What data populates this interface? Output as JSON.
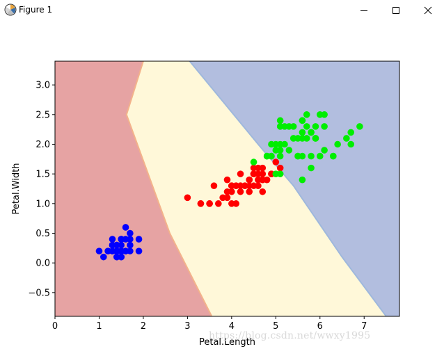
{
  "window": {
    "title": "Figure 1",
    "icon": "matplotlib-figure-icon",
    "buttons": [
      "minimize-icon",
      "maximize-icon",
      "close-icon"
    ]
  },
  "chart_data": {
    "type": "scatter",
    "title": "",
    "xlabel": "Petal.Length",
    "ylabel": "Petal.Width",
    "xlim": [
      0,
      7.8
    ],
    "ylim": [
      -0.9,
      3.4
    ],
    "xticks": [
      0,
      1,
      2,
      3,
      4,
      5,
      6,
      7
    ],
    "yticks": [
      -0.5,
      0.0,
      0.5,
      1.0,
      1.5,
      2.0,
      2.5,
      3.0
    ],
    "xtick_labels": [
      "0",
      "1",
      "2",
      "3",
      "4",
      "5",
      "6",
      "7"
    ],
    "ytick_labels": [
      "−0.5",
      "0.0",
      "0.5",
      "1.0",
      "1.5",
      "2.0",
      "2.5",
      "3.0"
    ],
    "grid": false,
    "decision_regions": [
      {
        "color": "#e6a3a3",
        "left_boundary": null,
        "right_boundary": [
          [
            2.0,
            3.4
          ],
          [
            1.62,
            2.5
          ],
          [
            2.6,
            0.5
          ],
          [
            3.55,
            -0.9
          ]
        ]
      },
      {
        "color": "#fff8d9",
        "left_boundary": "previous",
        "right_boundary": [
          [
            3.05,
            3.4
          ],
          [
            4.6,
            2.0
          ],
          [
            5.4,
            1.3
          ],
          [
            6.5,
            0.1
          ],
          [
            7.5,
            -0.9
          ]
        ]
      },
      {
        "color": "#b2bedf",
        "left_boundary": "previous",
        "right_boundary": null
      }
    ],
    "series": [
      {
        "color": "#0000ff",
        "points": [
          [
            1.4,
            0.2
          ],
          [
            1.4,
            0.2
          ],
          [
            1.3,
            0.2
          ],
          [
            1.5,
            0.2
          ],
          [
            1.4,
            0.2
          ],
          [
            1.7,
            0.4
          ],
          [
            1.4,
            0.3
          ],
          [
            1.5,
            0.2
          ],
          [
            1.4,
            0.2
          ],
          [
            1.5,
            0.1
          ],
          [
            1.5,
            0.2
          ],
          [
            1.6,
            0.2
          ],
          [
            1.4,
            0.1
          ],
          [
            1.1,
            0.1
          ],
          [
            1.2,
            0.2
          ],
          [
            1.5,
            0.4
          ],
          [
            1.3,
            0.4
          ],
          [
            1.4,
            0.3
          ],
          [
            1.7,
            0.3
          ],
          [
            1.5,
            0.3
          ],
          [
            1.7,
            0.2
          ],
          [
            1.5,
            0.4
          ],
          [
            1.0,
            0.2
          ],
          [
            1.7,
            0.5
          ],
          [
            1.9,
            0.2
          ],
          [
            1.6,
            0.2
          ],
          [
            1.6,
            0.4
          ],
          [
            1.5,
            0.2
          ],
          [
            1.4,
            0.2
          ],
          [
            1.6,
            0.2
          ],
          [
            1.6,
            0.2
          ],
          [
            1.5,
            0.4
          ],
          [
            1.5,
            0.1
          ],
          [
            1.4,
            0.2
          ],
          [
            1.5,
            0.2
          ],
          [
            1.2,
            0.2
          ],
          [
            1.3,
            0.2
          ],
          [
            1.4,
            0.1
          ],
          [
            1.3,
            0.2
          ],
          [
            1.5,
            0.2
          ],
          [
            1.3,
            0.3
          ],
          [
            1.3,
            0.3
          ],
          [
            1.3,
            0.2
          ],
          [
            1.6,
            0.6
          ],
          [
            1.9,
            0.4
          ],
          [
            1.4,
            0.3
          ],
          [
            1.6,
            0.2
          ],
          [
            1.4,
            0.2
          ],
          [
            1.5,
            0.2
          ],
          [
            1.4,
            0.2
          ]
        ]
      },
      {
        "color": "#ff0000",
        "points": [
          [
            4.7,
            1.4
          ],
          [
            4.5,
            1.5
          ],
          [
            4.9,
            1.5
          ],
          [
            4.0,
            1.3
          ],
          [
            4.6,
            1.5
          ],
          [
            4.5,
            1.3
          ],
          [
            4.7,
            1.6
          ],
          [
            3.3,
            1.0
          ],
          [
            4.6,
            1.3
          ],
          [
            3.9,
            1.4
          ],
          [
            3.5,
            1.0
          ],
          [
            4.2,
            1.5
          ],
          [
            4.0,
            1.0
          ],
          [
            4.7,
            1.4
          ],
          [
            3.6,
            1.3
          ],
          [
            4.4,
            1.4
          ],
          [
            4.5,
            1.5
          ],
          [
            4.1,
            1.0
          ],
          [
            4.5,
            1.5
          ],
          [
            3.9,
            1.1
          ],
          [
            4.0,
            1.3
          ],
          [
            4.9,
            1.5
          ],
          [
            4.7,
            1.2
          ],
          [
            4.3,
            1.3
          ],
          [
            4.4,
            1.4
          ],
          [
            4.8,
            1.4
          ],
          [
            5.0,
            1.7
          ],
          [
            4.5,
            1.5
          ],
          [
            3.5,
            1.0
          ],
          [
            3.8,
            1.1
          ],
          [
            3.7,
            1.0
          ],
          [
            3.9,
            1.2
          ],
          [
            5.1,
            1.6
          ],
          [
            4.5,
            1.5
          ],
          [
            4.5,
            1.6
          ],
          [
            4.7,
            1.5
          ],
          [
            4.4,
            1.3
          ],
          [
            4.1,
            1.3
          ],
          [
            4.0,
            1.3
          ],
          [
            4.4,
            1.2
          ],
          [
            4.6,
            1.4
          ],
          [
            4.0,
            1.2
          ],
          [
            3.3,
            1.0
          ],
          [
            4.2,
            1.3
          ],
          [
            4.2,
            1.2
          ],
          [
            4.2,
            1.3
          ],
          [
            4.3,
            1.3
          ],
          [
            3.0,
            1.1
          ],
          [
            4.1,
            1.3
          ],
          [
            4.6,
            1.6
          ]
        ]
      },
      {
        "color": "#00ee00",
        "points": [
          [
            6.0,
            2.5
          ],
          [
            5.1,
            1.9
          ],
          [
            5.9,
            2.1
          ],
          [
            5.6,
            1.8
          ],
          [
            5.8,
            2.2
          ],
          [
            6.6,
            2.1
          ],
          [
            4.5,
            1.7
          ],
          [
            6.3,
            1.8
          ],
          [
            5.8,
            1.8
          ],
          [
            6.1,
            2.5
          ],
          [
            5.1,
            2.0
          ],
          [
            5.3,
            1.9
          ],
          [
            5.5,
            2.1
          ],
          [
            5.0,
            2.0
          ],
          [
            5.1,
            2.4
          ],
          [
            5.3,
            2.3
          ],
          [
            5.5,
            1.8
          ],
          [
            6.7,
            2.2
          ],
          [
            6.9,
            2.3
          ],
          [
            5.0,
            1.5
          ],
          [
            5.7,
            2.3
          ],
          [
            4.9,
            2.0
          ],
          [
            6.7,
            2.0
          ],
          [
            4.9,
            1.8
          ],
          [
            5.7,
            2.1
          ],
          [
            6.0,
            1.8
          ],
          [
            4.8,
            1.8
          ],
          [
            4.9,
            1.8
          ],
          [
            5.6,
            2.1
          ],
          [
            5.8,
            1.6
          ],
          [
            6.1,
            1.9
          ],
          [
            6.4,
            2.0
          ],
          [
            5.6,
            2.2
          ],
          [
            5.1,
            1.5
          ],
          [
            5.6,
            1.4
          ],
          [
            6.1,
            2.3
          ],
          [
            5.6,
            2.4
          ],
          [
            5.5,
            1.8
          ],
          [
            4.8,
            1.8
          ],
          [
            5.4,
            2.1
          ],
          [
            5.6,
            2.4
          ],
          [
            5.1,
            2.3
          ],
          [
            5.9,
            2.3
          ],
          [
            5.7,
            2.5
          ],
          [
            5.2,
            2.3
          ],
          [
            5.0,
            1.9
          ],
          [
            5.2,
            2.0
          ],
          [
            5.4,
            2.3
          ],
          [
            5.1,
            1.8
          ],
          [
            5.9,
            2.1
          ],
          [
            6.3,
            1.8
          ],
          [
            5.8,
            2.2
          ]
        ]
      }
    ]
  },
  "watermark": "https://blog.csdn.net/wwxy1995"
}
